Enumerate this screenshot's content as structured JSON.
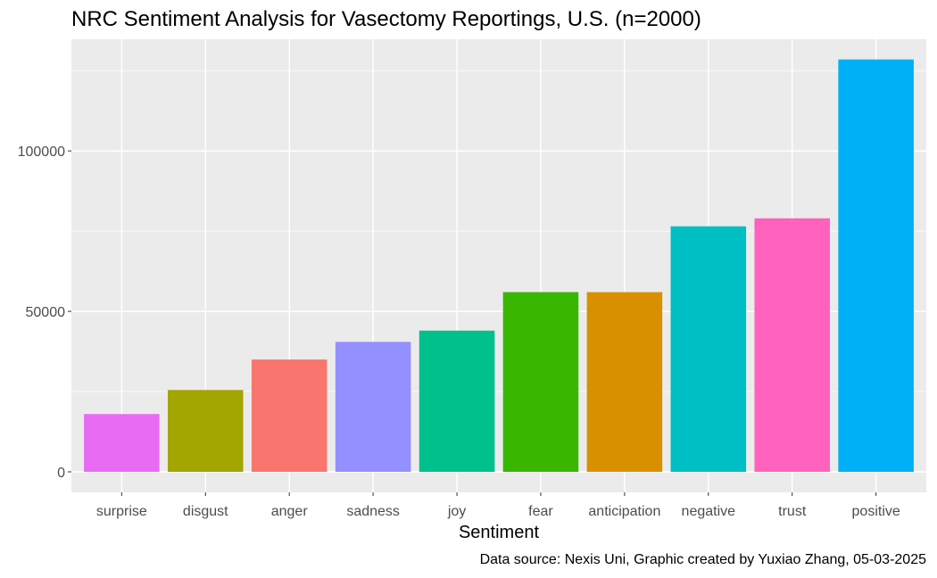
{
  "chart_data": {
    "type": "bar",
    "title": "NRC Sentiment Analysis for Vasectomy Reportings, U.S. (n=2000)",
    "xlabel": "Sentiment",
    "ylabel": "",
    "caption": "Data source: Nexis Uni, Graphic created by Yuxiao Zhang, 05-03-2025",
    "categories": [
      "surprise",
      "disgust",
      "anger",
      "sadness",
      "joy",
      "fear",
      "anticipation",
      "negative",
      "trust",
      "positive"
    ],
    "values": [
      18000,
      25500,
      35000,
      40500,
      44000,
      56000,
      56000,
      76500,
      79000,
      128500
    ],
    "colors": [
      "#E76BF3",
      "#A3A500",
      "#F8766D",
      "#9590FF",
      "#00C08B",
      "#39B600",
      "#D89000",
      "#00BFC4",
      "#FF62BC",
      "#00B0F6"
    ],
    "yticks": [
      0,
      50000,
      100000
    ],
    "ytick_labels": [
      "0",
      "50000",
      "100000"
    ],
    "ylim": [
      -6400,
      134800
    ],
    "grid": true,
    "legend": "none"
  }
}
